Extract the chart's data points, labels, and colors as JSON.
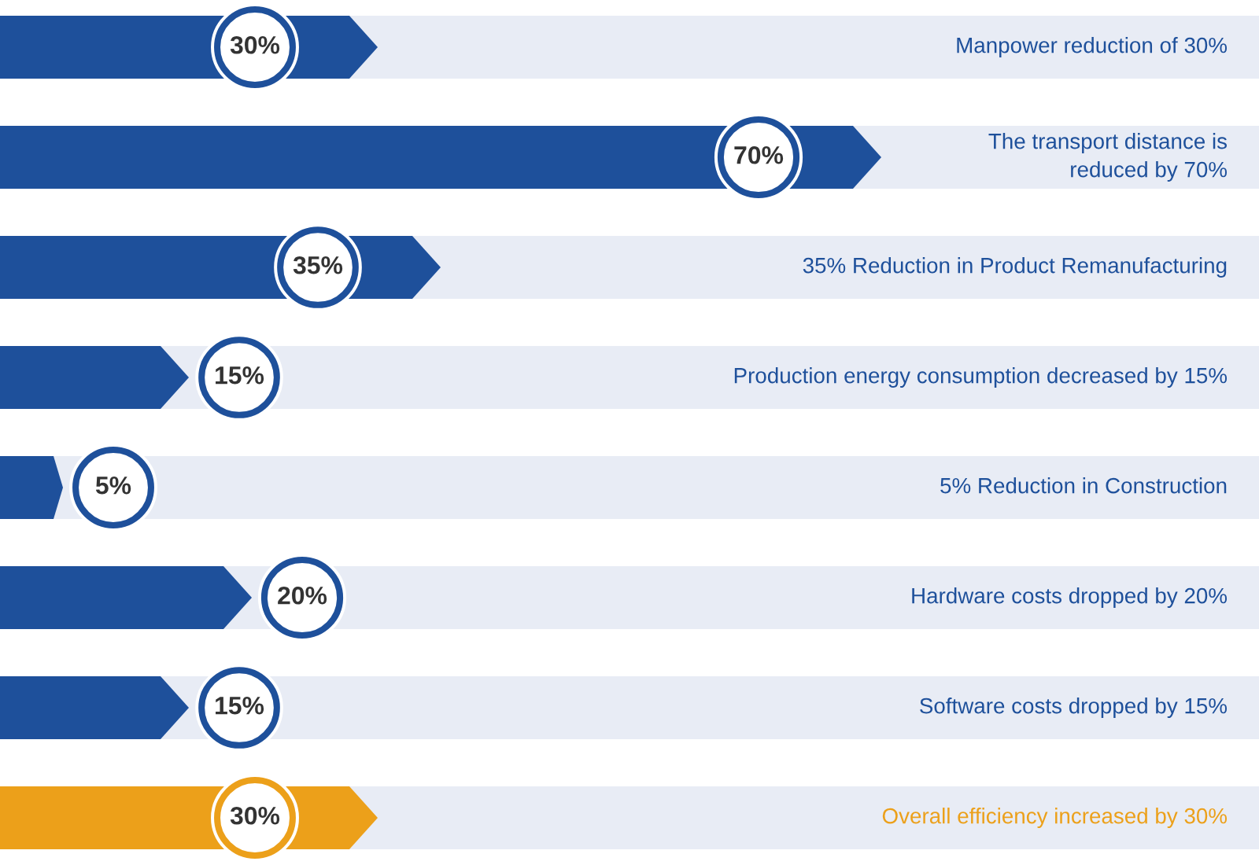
{
  "chart_data": {
    "type": "bar",
    "orientation": "horizontal",
    "categories": [
      "Manpower reduction of 30%",
      "The transport distance is reduced by 70%",
      "35% Reduction in Product Remanufacturing",
      "Production energy consumption decreased by 15%",
      "5% Reduction in Construction",
      "Hardware costs dropped by 20%",
      "Software costs dropped by 15%",
      "Overall efficiency increased by 30%"
    ],
    "values": [
      30,
      70,
      35,
      15,
      5,
      20,
      15,
      30
    ],
    "colors": [
      "#1e509b",
      "#1e509b",
      "#1e509b",
      "#1e509b",
      "#1e509b",
      "#1e509b",
      "#1e509b",
      "#eca01a"
    ],
    "value_labels": [
      "30%",
      "70%",
      "35%",
      "15%",
      "5%",
      "20%",
      "15%",
      "30%"
    ],
    "xlim": [
      0,
      100
    ],
    "tick_labels": "y"
  }
}
